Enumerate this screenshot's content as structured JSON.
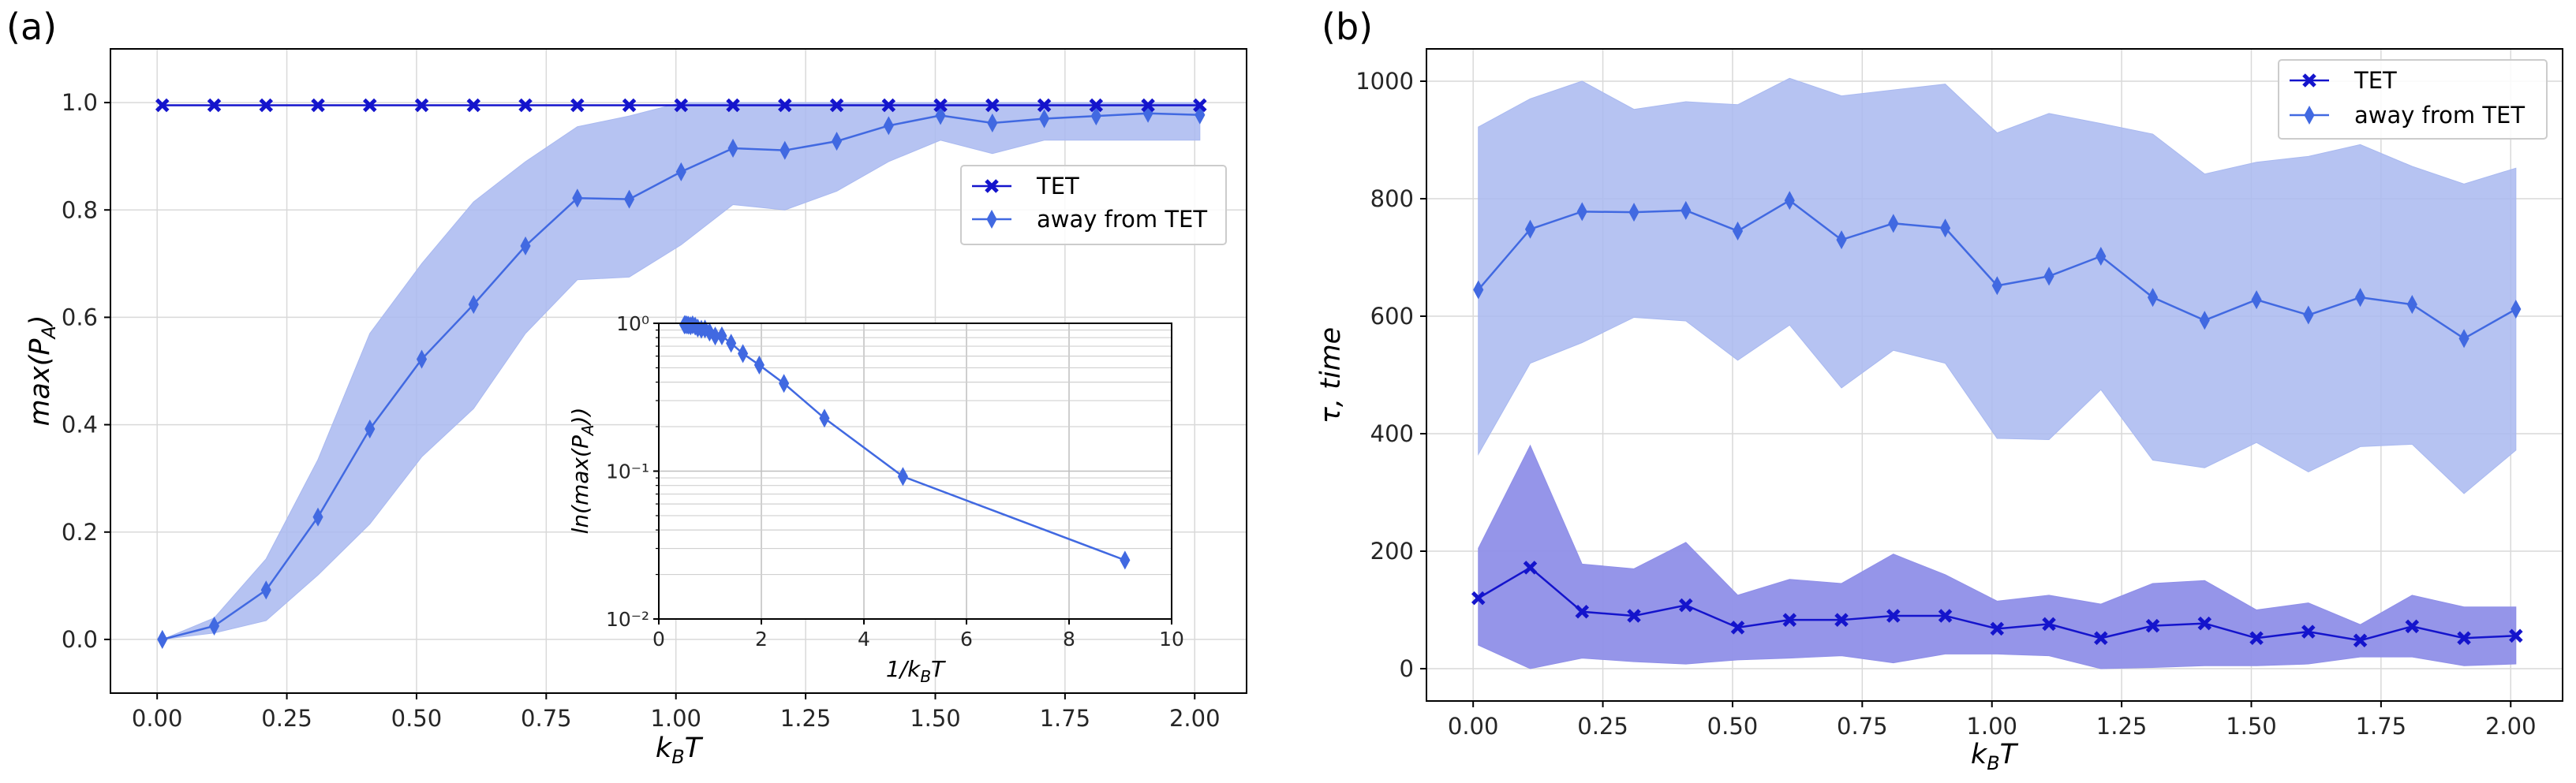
{
  "panel_a_label": "(a)",
  "panel_b_label": "(b)",
  "colors": {
    "tet": "#1414cc",
    "away": "#4169e1",
    "away_fill": "#a9b9f0",
    "tet_fill": "#8f8fe8",
    "grid": "#d9d9d9"
  },
  "chart_data": [
    {
      "type": "line",
      "id": "a",
      "xlabel": "k_BT",
      "ylabel": "max(P_A)",
      "xlim": [
        -0.09,
        2.1
      ],
      "ylim": [
        -0.1,
        1.1
      ],
      "x_ticks": [
        0.0,
        0.25,
        0.5,
        0.75,
        1.0,
        1.25,
        1.5,
        1.75,
        2.0
      ],
      "x_tick_labels": [
        "0.00",
        "0.25",
        "0.50",
        "0.75",
        "1.00",
        "1.25",
        "1.50",
        "1.75",
        "2.00"
      ],
      "y_ticks": [
        0.0,
        0.2,
        0.4,
        0.6,
        0.8,
        1.0
      ],
      "y_tick_labels": [
        "0.0",
        "0.2",
        "0.4",
        "0.6",
        "0.8",
        "1.0"
      ],
      "grid": true,
      "legend_position": "center-right",
      "x": [
        0.01,
        0.11,
        0.21,
        0.31,
        0.41,
        0.51,
        0.61,
        0.71,
        0.81,
        0.91,
        1.01,
        1.11,
        1.21,
        1.31,
        1.41,
        1.51,
        1.61,
        1.71,
        1.81,
        1.91,
        2.01
      ],
      "series": [
        {
          "name": "TET",
          "marker": "x-filled",
          "values": [
            0.995,
            0.995,
            0.995,
            0.995,
            0.995,
            0.995,
            0.995,
            0.995,
            0.995,
            0.995,
            0.995,
            0.995,
            0.995,
            0.995,
            0.995,
            0.995,
            0.995,
            0.995,
            0.995,
            0.995,
            0.995
          ],
          "lower": [
            0.995,
            0.995,
            0.995,
            0.995,
            0.995,
            0.995,
            0.995,
            0.995,
            0.995,
            0.995,
            0.995,
            0.995,
            0.995,
            0.995,
            0.995,
            0.995,
            0.995,
            0.995,
            0.995,
            0.995,
            0.995
          ],
          "upper": [
            0.995,
            0.995,
            0.995,
            0.995,
            0.995,
            0.995,
            0.995,
            0.995,
            0.995,
            0.995,
            0.995,
            0.995,
            0.995,
            0.995,
            0.995,
            0.995,
            0.995,
            0.995,
            0.995,
            0.995,
            0.995
          ]
        },
        {
          "name": "away from TET",
          "marker": "diamond",
          "values": [
            0.0,
            0.025,
            0.092,
            0.228,
            0.392,
            0.522,
            0.624,
            0.733,
            0.822,
            0.82,
            0.871,
            0.915,
            0.911,
            0.928,
            0.957,
            0.976,
            0.962,
            0.97,
            0.975,
            0.98,
            0.977
          ],
          "lower": [
            0.0,
            0.012,
            0.035,
            0.12,
            0.215,
            0.34,
            0.43,
            0.57,
            0.67,
            0.675,
            0.735,
            0.81,
            0.8,
            0.835,
            0.89,
            0.93,
            0.905,
            0.93,
            0.93,
            0.93,
            0.93
          ],
          "upper": [
            0.0,
            0.04,
            0.15,
            0.335,
            0.57,
            0.7,
            0.815,
            0.89,
            0.955,
            0.975,
            1.0,
            1.0,
            1.0,
            1.0,
            1.0,
            1.0,
            1.0,
            1.0,
            1.0,
            1.0,
            1.0
          ]
        }
      ],
      "inset": {
        "type": "line",
        "xlabel": "1/k_BT",
        "ylabel": "ln(max(P_A))",
        "xlim": [
          0,
          10
        ],
        "ylim_log": [
          0.01,
          1.0
        ],
        "y_scale": "log",
        "x_ticks": [
          0,
          2,
          4,
          6,
          8,
          10
        ],
        "x_tick_labels": [
          "0",
          "2",
          "4",
          "6",
          "8",
          "10"
        ],
        "y_ticks": [
          0.01,
          0.1,
          1.0
        ],
        "y_tick_labels": [
          "10⁻²",
          "10⁻¹",
          "10⁰"
        ],
        "x": [
          9.09,
          4.76,
          3.23,
          2.44,
          1.96,
          1.64,
          1.41,
          1.23,
          1.1,
          0.99,
          0.9,
          0.83,
          0.76,
          0.71,
          0.66,
          0.62,
          0.58,
          0.55,
          0.52,
          0.5
        ],
        "values": [
          0.025,
          0.092,
          0.228,
          0.392,
          0.522,
          0.624,
          0.733,
          0.822,
          0.82,
          0.871,
          0.915,
          0.911,
          0.928,
          0.957,
          0.976,
          0.962,
          0.97,
          0.975,
          0.98,
          0.977
        ]
      }
    },
    {
      "type": "line",
      "id": "b",
      "xlabel": "k_BT",
      "ylabel": "τ, time",
      "xlim": [
        -0.09,
        2.1
      ],
      "ylim": [
        -55,
        1055
      ],
      "x_ticks": [
        0.0,
        0.25,
        0.5,
        0.75,
        1.0,
        1.25,
        1.5,
        1.75,
        2.0
      ],
      "x_tick_labels": [
        "0.00",
        "0.25",
        "0.50",
        "0.75",
        "1.00",
        "1.25",
        "1.50",
        "1.75",
        "2.00"
      ],
      "y_ticks": [
        0,
        200,
        400,
        600,
        800,
        1000
      ],
      "y_tick_labels": [
        "0",
        "200",
        "400",
        "600",
        "800",
        "1000"
      ],
      "grid": true,
      "legend_position": "top-right",
      "x": [
        0.01,
        0.11,
        0.21,
        0.31,
        0.41,
        0.51,
        0.61,
        0.71,
        0.81,
        0.91,
        1.01,
        1.11,
        1.21,
        1.31,
        1.41,
        1.51,
        1.61,
        1.71,
        1.81,
        1.91,
        2.01
      ],
      "series": [
        {
          "name": "TET",
          "marker": "x-filled",
          "values": [
            120,
            172,
            97,
            90,
            108,
            70,
            83,
            83,
            90,
            90,
            68,
            76,
            52,
            73,
            77,
            52,
            63,
            48,
            72,
            52,
            56
          ],
          "lower": [
            40,
            0,
            18,
            12,
            8,
            15,
            18,
            22,
            10,
            25,
            25,
            22,
            0,
            2,
            5,
            5,
            8,
            20,
            20,
            5,
            8
          ],
          "upper": [
            205,
            380,
            178,
            170,
            215,
            125,
            152,
            145,
            195,
            160,
            115,
            125,
            110,
            145,
            150,
            100,
            112,
            75,
            125,
            105,
            105
          ]
        },
        {
          "name": "away from TET",
          "marker": "diamond",
          "values": [
            645,
            748,
            778,
            777,
            780,
            745,
            797,
            730,
            758,
            750,
            652,
            668,
            702,
            632,
            593,
            628,
            602,
            632,
            620,
            562,
            612
          ],
          "lower": [
            365,
            520,
            555,
            598,
            592,
            525,
            585,
            478,
            542,
            520,
            392,
            390,
            475,
            355,
            342,
            385,
            335,
            378,
            382,
            298,
            372
          ],
          "upper": [
            922,
            970,
            1000,
            952,
            965,
            960,
            1005,
            975,
            985,
            995,
            912,
            945,
            928,
            910,
            842,
            862,
            872,
            892,
            855,
            825,
            852
          ]
        }
      ]
    }
  ],
  "inset_xlabel_text": "1/k",
  "inset_xlabel_sub": "B",
  "inset_xlabel_tail": "T",
  "inset_ylabel_text": "ln(max(P",
  "inset_ylabel_sub": "A",
  "inset_ylabel_tail": "))",
  "a_ylabel_text": "max(P",
  "a_ylabel_sub": "A",
  "a_ylabel_tail": ")",
  "b_ylabel_text": "τ, time",
  "xlabel_text": "k",
  "xlabel_sub": "B",
  "xlabel_tail": "T"
}
